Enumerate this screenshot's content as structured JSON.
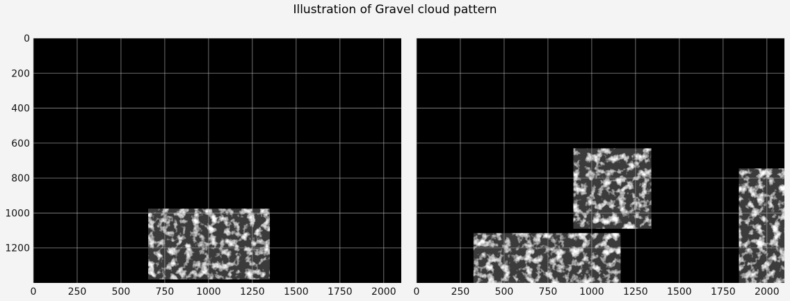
{
  "figure": {
    "title": "Illustration of Gravel cloud pattern",
    "background": "#f4f4f4"
  },
  "chart_data": [
    {
      "type": "image",
      "panel": "left",
      "xlim": [
        0,
        2100
      ],
      "ylim": [
        1400,
        0
      ],
      "x_ticks": [
        0,
        250,
        500,
        750,
        1000,
        1250,
        1500,
        1750,
        2000
      ],
      "y_ticks": [
        0,
        200,
        400,
        600,
        800,
        1000,
        1200
      ],
      "grid": true,
      "grid_color": "#b0b0b0",
      "image_background": "#000000",
      "cloud_regions": [
        {
          "x0": 655,
          "x1": 1350,
          "y0": 975,
          "y1": 1380
        }
      ]
    },
    {
      "type": "image",
      "panel": "right",
      "xlim": [
        0,
        2100
      ],
      "ylim": [
        1400,
        0
      ],
      "x_ticks": [
        0,
        250,
        500,
        750,
        1000,
        1250,
        1500,
        1750,
        2000
      ],
      "y_ticks": [],
      "grid": true,
      "grid_color": "#b0b0b0",
      "image_background": "#000000",
      "cloud_regions": [
        {
          "x0": 895,
          "x1": 1340,
          "y0": 630,
          "y1": 1090
        },
        {
          "x0": 325,
          "x1": 1165,
          "y0": 1115,
          "y1": 1400
        },
        {
          "x0": 1840,
          "x1": 2100,
          "y0": 745,
          "y1": 1400
        }
      ]
    }
  ]
}
